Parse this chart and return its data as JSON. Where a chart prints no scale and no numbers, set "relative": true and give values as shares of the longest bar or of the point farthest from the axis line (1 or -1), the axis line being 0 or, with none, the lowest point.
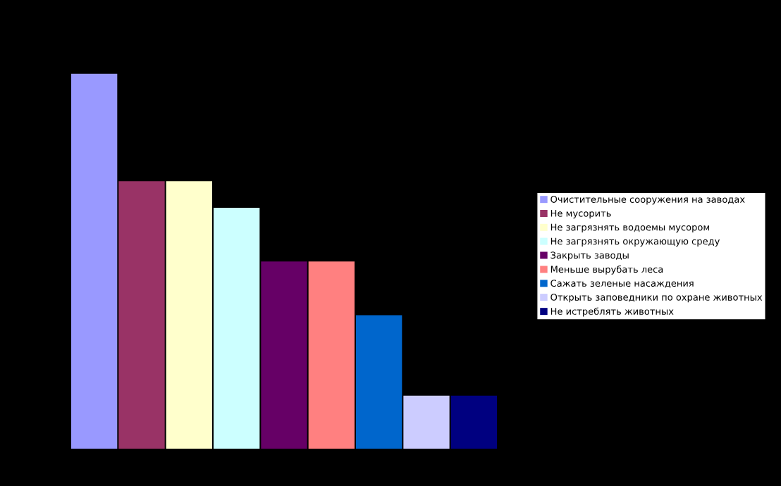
{
  "chart_data": {
    "type": "bar",
    "relative": true,
    "legend": "right",
    "grid": false,
    "categories": [
      null
    ],
    "series": [
      {
        "name": "Очистительные сооружения на заводах",
        "color": "#9999ff",
        "values": [
          1
        ]
      },
      {
        "name": "Не мусорить",
        "color": "#993366",
        "values": [
          0.714
        ]
      },
      {
        "name": "Не загрязнять водоемы мусором",
        "color": "#ffffcc",
        "values": [
          0.714
        ]
      },
      {
        "name": "Не загрязнять окружающую среду",
        "color": "#ccffff",
        "values": [
          0.643
        ]
      },
      {
        "name": "Закрыть заводы",
        "color": "#660066",
        "values": [
          0.5
        ]
      },
      {
        "name": "Меньше вырубать леса",
        "color": "#ff8080",
        "values": [
          0.5
        ]
      },
      {
        "name": "Сажать зеленые насаждения",
        "color": "#0066cc",
        "values": [
          0.357
        ]
      },
      {
        "name": "Открыть заповедники по охране животных",
        "color": "#ccccff",
        "values": [
          0.143
        ]
      },
      {
        "name": "Не истреблять животных",
        "color": "#000080",
        "values": [
          0.143
        ]
      }
    ]
  }
}
